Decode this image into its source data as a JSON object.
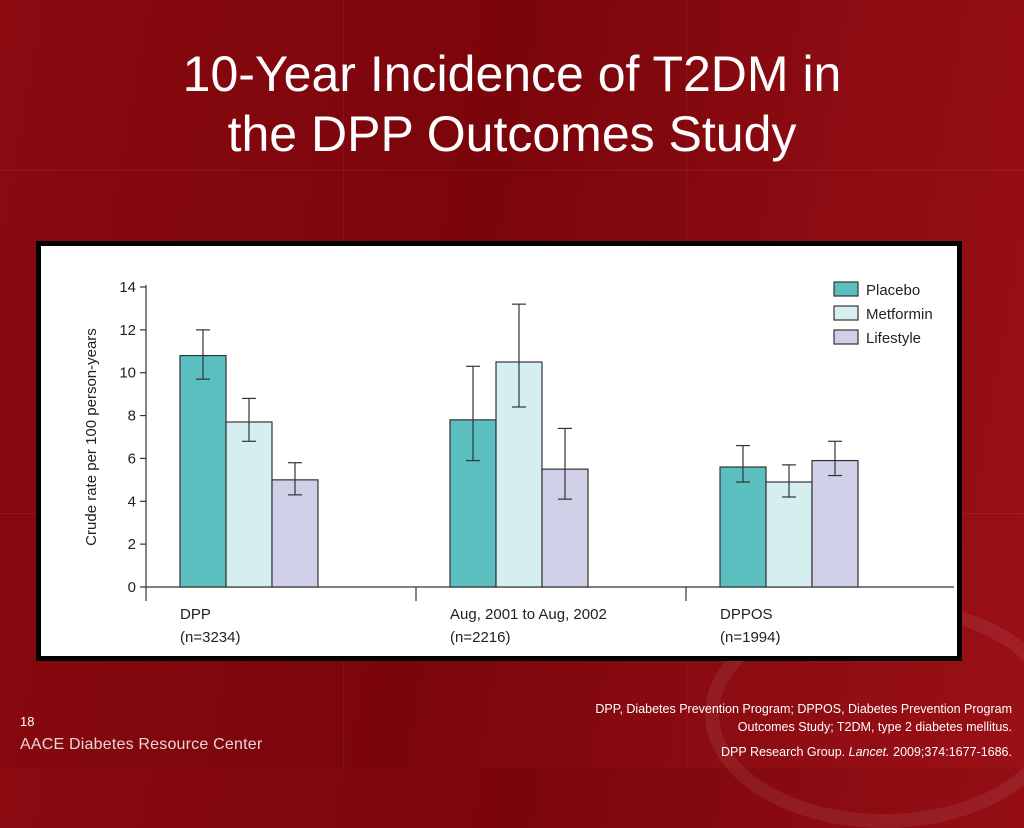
{
  "slide": {
    "title_line1": "10-Year Incidence of T2DM in",
    "title_line2": "the DPP Outcomes Study",
    "slide_number": "18",
    "footer_brand": "AACE Diabetes Resource Center",
    "footnote": "DPP, Diabetes Prevention Program; DPPOS, Diabetes Prevention Program Outcomes Study; T2DM, type 2 diabetes mellitus.",
    "citation_authors": "DPP Research Group.",
    "citation_journal": "Lancet.",
    "citation_rest": "2009;374:1677-1686."
  },
  "chart_data": {
    "type": "bar",
    "ylabel": "Crude rate per 100 person-years",
    "ylim": [
      0,
      14
    ],
    "yticks": [
      0,
      2,
      4,
      6,
      8,
      10,
      12,
      14
    ],
    "categories": [
      {
        "line1": "DPP",
        "line2": "(n=3234)"
      },
      {
        "line1": "Aug, 2001 to Aug, 2002",
        "line2": "(n=2216)"
      },
      {
        "line1": "DPPOS",
        "line2": "(n=1994)"
      }
    ],
    "series": [
      {
        "name": "Placebo",
        "color": "#5bbfbf",
        "values": [
          10.8,
          7.8,
          5.6
        ],
        "err_low": [
          9.7,
          5.9,
          4.9
        ],
        "err_high": [
          12.0,
          10.3,
          6.6
        ]
      },
      {
        "name": "Metformin",
        "color": "#d5eef0",
        "values": [
          7.7,
          10.5,
          4.9
        ],
        "err_low": [
          6.8,
          8.4,
          4.2
        ],
        "err_high": [
          8.8,
          13.2,
          5.7
        ]
      },
      {
        "name": "Lifestyle",
        "color": "#d0cfe8",
        "values": [
          5.0,
          5.5,
          5.9
        ],
        "err_low": [
          4.3,
          4.1,
          5.2
        ],
        "err_high": [
          5.8,
          7.4,
          6.8
        ]
      }
    ],
    "legend_position": "top-right",
    "grid": false
  }
}
